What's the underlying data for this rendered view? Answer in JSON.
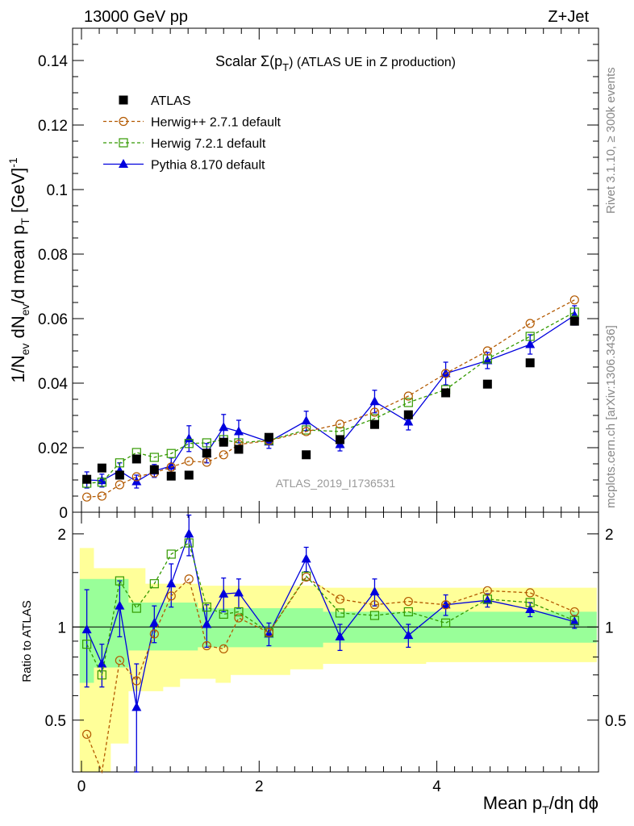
{
  "header": {
    "left": "13000 GeV pp",
    "right": "Z+Jet"
  },
  "side_text": {
    "rivet": "Rivet 3.1.10, ≥ 300k events",
    "mcplots": "mcplots.cern.ch [arXiv:1306.3436]"
  },
  "watermark": "ATLAS_2019_I1736531",
  "colors": {
    "data": "#000000",
    "herwigpp": "#b35900",
    "herwig7": "#339900",
    "pythia": "#0000dd",
    "band_outer": "#ffff99",
    "band_inner": "#99ff99"
  },
  "chart_data": [
    {
      "type": "scatter",
      "title": "Scalar Σ(p_T) (ATLAS UE in Z production)",
      "title_parts": {
        "pre": "Scalar Σ(p",
        "sub": "T",
        "post": ") (ATLAS UE in Z production)"
      },
      "ylabel_parts": {
        "a": "1/N",
        "a_sub": "ev",
        "b": " dN",
        "b_sub": "ev",
        "c": "/d mean p",
        "c_sub": "T",
        "d": " [GeV]",
        "d_sup": "-1"
      },
      "xlim": [
        -0.1,
        5.82
      ],
      "ylim": [
        0,
        0.15
      ],
      "yticks": [
        0,
        0.02,
        0.04,
        0.06,
        0.08,
        0.1,
        0.12,
        0.14
      ],
      "ytick_labels": [
        "0",
        "0.02",
        "0.04",
        "0.06",
        "0.08",
        "0.1",
        "0.12",
        "0.14"
      ],
      "x": [
        0.06,
        0.23,
        0.43,
        0.62,
        0.82,
        1.01,
        1.21,
        1.41,
        1.6,
        1.77,
        2.11,
        2.53,
        2.91,
        3.3,
        3.68,
        4.1,
        4.57,
        5.05,
        5.55
      ],
      "legend": {
        "position": "top-left",
        "entries": [
          {
            "name": "ATLAS",
            "key": "data"
          },
          {
            "name": "Herwig++ 2.7.1 default",
            "key": "herwigpp"
          },
          {
            "name": "Herwig 7.2.1 default",
            "key": "herwig7"
          },
          {
            "name": "Pythia 8.170 default",
            "key": "pythia"
          }
        ]
      },
      "series": [
        {
          "name": "ATLAS",
          "marker": "square",
          "values": [
            0.0102,
            0.0137,
            0.0115,
            0.0165,
            0.0132,
            0.0112,
            0.0115,
            0.0183,
            0.0217,
            0.0195,
            0.0232,
            0.0178,
            0.0225,
            0.0272,
            0.0302,
            0.037,
            0.0397,
            0.0463,
            0.0592
          ]
        },
        {
          "name": "Herwig++ 2.7.1 default",
          "marker": "circle-open",
          "line": "dashed",
          "values": [
            0.0047,
            0.005,
            0.0085,
            0.011,
            0.0122,
            0.014,
            0.0158,
            0.0155,
            0.0178,
            0.021,
            0.0222,
            0.025,
            0.0273,
            0.031,
            0.036,
            0.043,
            0.05,
            0.0585,
            0.0658
          ]
        },
        {
          "name": "Herwig 7.2.1 default",
          "marker": "square-open",
          "line": "dashed",
          "values": [
            0.009,
            0.0093,
            0.0153,
            0.0185,
            0.017,
            0.0182,
            0.0213,
            0.0215,
            0.0225,
            0.0215,
            0.0223,
            0.0255,
            0.025,
            0.029,
            0.034,
            0.038,
            0.0475,
            0.0545,
            0.062
          ]
        },
        {
          "name": "Pythia 8.170 default",
          "marker": "triangle",
          "line": "solid",
          "values": [
            0.01,
            0.0098,
            0.0128,
            0.0095,
            0.0128,
            0.0143,
            0.0228,
            0.0183,
            0.0263,
            0.025,
            0.0218,
            0.0283,
            0.021,
            0.0343,
            0.028,
            0.043,
            0.047,
            0.052,
            0.061
          ],
          "errors": [
            0.0025,
            0.002,
            0.0025,
            0.002,
            0.002,
            0.0025,
            0.004,
            0.003,
            0.004,
            0.0035,
            0.002,
            0.003,
            0.002,
            0.0035,
            0.0025,
            0.0035,
            0.0025,
            0.003,
            0.003
          ]
        }
      ]
    },
    {
      "type": "scatter",
      "ylabel": "Ratio to ATLAS",
      "xlabel": "Mean p_T/dη dϕ",
      "xlabel_parts": {
        "pre": "Mean p",
        "sub": "T",
        "post": "/dη dϕ"
      },
      "xlim": [
        -0.1,
        5.82
      ],
      "ylim": [
        0.34,
        2.35
      ],
      "yticks": [
        0.5,
        1,
        2
      ],
      "ytick_labels": [
        "0.5",
        "1",
        "2"
      ],
      "xticks": [
        0,
        2,
        4
      ],
      "xtick_labels": [
        "0",
        "2",
        "4"
      ],
      "reference_line": 1,
      "x_edges": [
        -0.02,
        0.14,
        0.33,
        0.53,
        0.72,
        0.92,
        1.11,
        1.31,
        1.51,
        1.68,
        1.87,
        2.35,
        2.72,
        3.11,
        3.49,
        3.88,
        4.33,
        4.82,
        5.3,
        5.8
      ],
      "band_inner": {
        "lo": [
          0.66,
          0.74,
          0.74,
          0.84,
          0.84,
          0.84,
          0.84,
          0.86,
          0.86,
          0.86,
          0.86,
          0.86,
          0.89,
          0.89,
          0.89,
          0.89,
          0.89,
          0.89,
          0.89
        ],
        "hi": [
          1.43,
          1.43,
          1.43,
          1.2,
          1.2,
          1.2,
          1.2,
          1.15,
          1.15,
          1.15,
          1.15,
          1.15,
          1.12,
          1.12,
          1.12,
          1.12,
          1.12,
          1.12,
          1.12
        ]
      },
      "band_outer": {
        "lo": [
          0.34,
          0.34,
          0.42,
          0.62,
          0.62,
          0.64,
          0.68,
          0.68,
          0.66,
          0.7,
          0.7,
          0.73,
          0.76,
          0.76,
          0.76,
          0.77,
          0.77,
          0.77,
          0.77
        ],
        "hi": [
          1.8,
          1.55,
          1.55,
          1.55,
          1.38,
          1.38,
          1.38,
          1.36,
          1.36,
          1.36,
          1.36,
          1.36,
          1.34,
          1.34,
          1.34,
          1.34,
          1.34,
          1.34,
          1.34
        ]
      },
      "series": [
        {
          "name": "Herwig++ 2.7.1 default",
          "marker": "circle-open",
          "line": "dashed",
          "values": [
            0.45,
            0.34,
            0.78,
            0.67,
            0.95,
            1.26,
            1.43,
            0.87,
            0.85,
            1.07,
            0.96,
            1.45,
            1.23,
            1.18,
            1.21,
            1.18,
            1.31,
            1.29,
            1.12
          ]
        },
        {
          "name": "Herwig 7.2.1 default",
          "marker": "square-open",
          "line": "dashed",
          "values": [
            0.88,
            0.7,
            1.41,
            1.15,
            1.38,
            1.72,
            1.87,
            1.16,
            1.1,
            1.12,
            0.96,
            1.46,
            1.11,
            1.09,
            1.12,
            1.03,
            1.23,
            1.2,
            1.05
          ]
        },
        {
          "name": "Pythia 8.170 default",
          "marker": "triangle",
          "line": "solid",
          "values": [
            0.98,
            0.76,
            1.17,
            0.55,
            1.03,
            1.38,
            2.0,
            1.02,
            1.28,
            1.29,
            0.95,
            1.66,
            0.93,
            1.3,
            0.94,
            1.18,
            1.22,
            1.14,
            1.04
          ],
          "errors": [
            0.34,
            0.12,
            0.24,
            0.21,
            0.14,
            0.22,
            0.3,
            0.16,
            0.16,
            0.14,
            0.08,
            0.15,
            0.09,
            0.13,
            0.08,
            0.09,
            0.06,
            0.06,
            0.05
          ]
        }
      ]
    }
  ]
}
